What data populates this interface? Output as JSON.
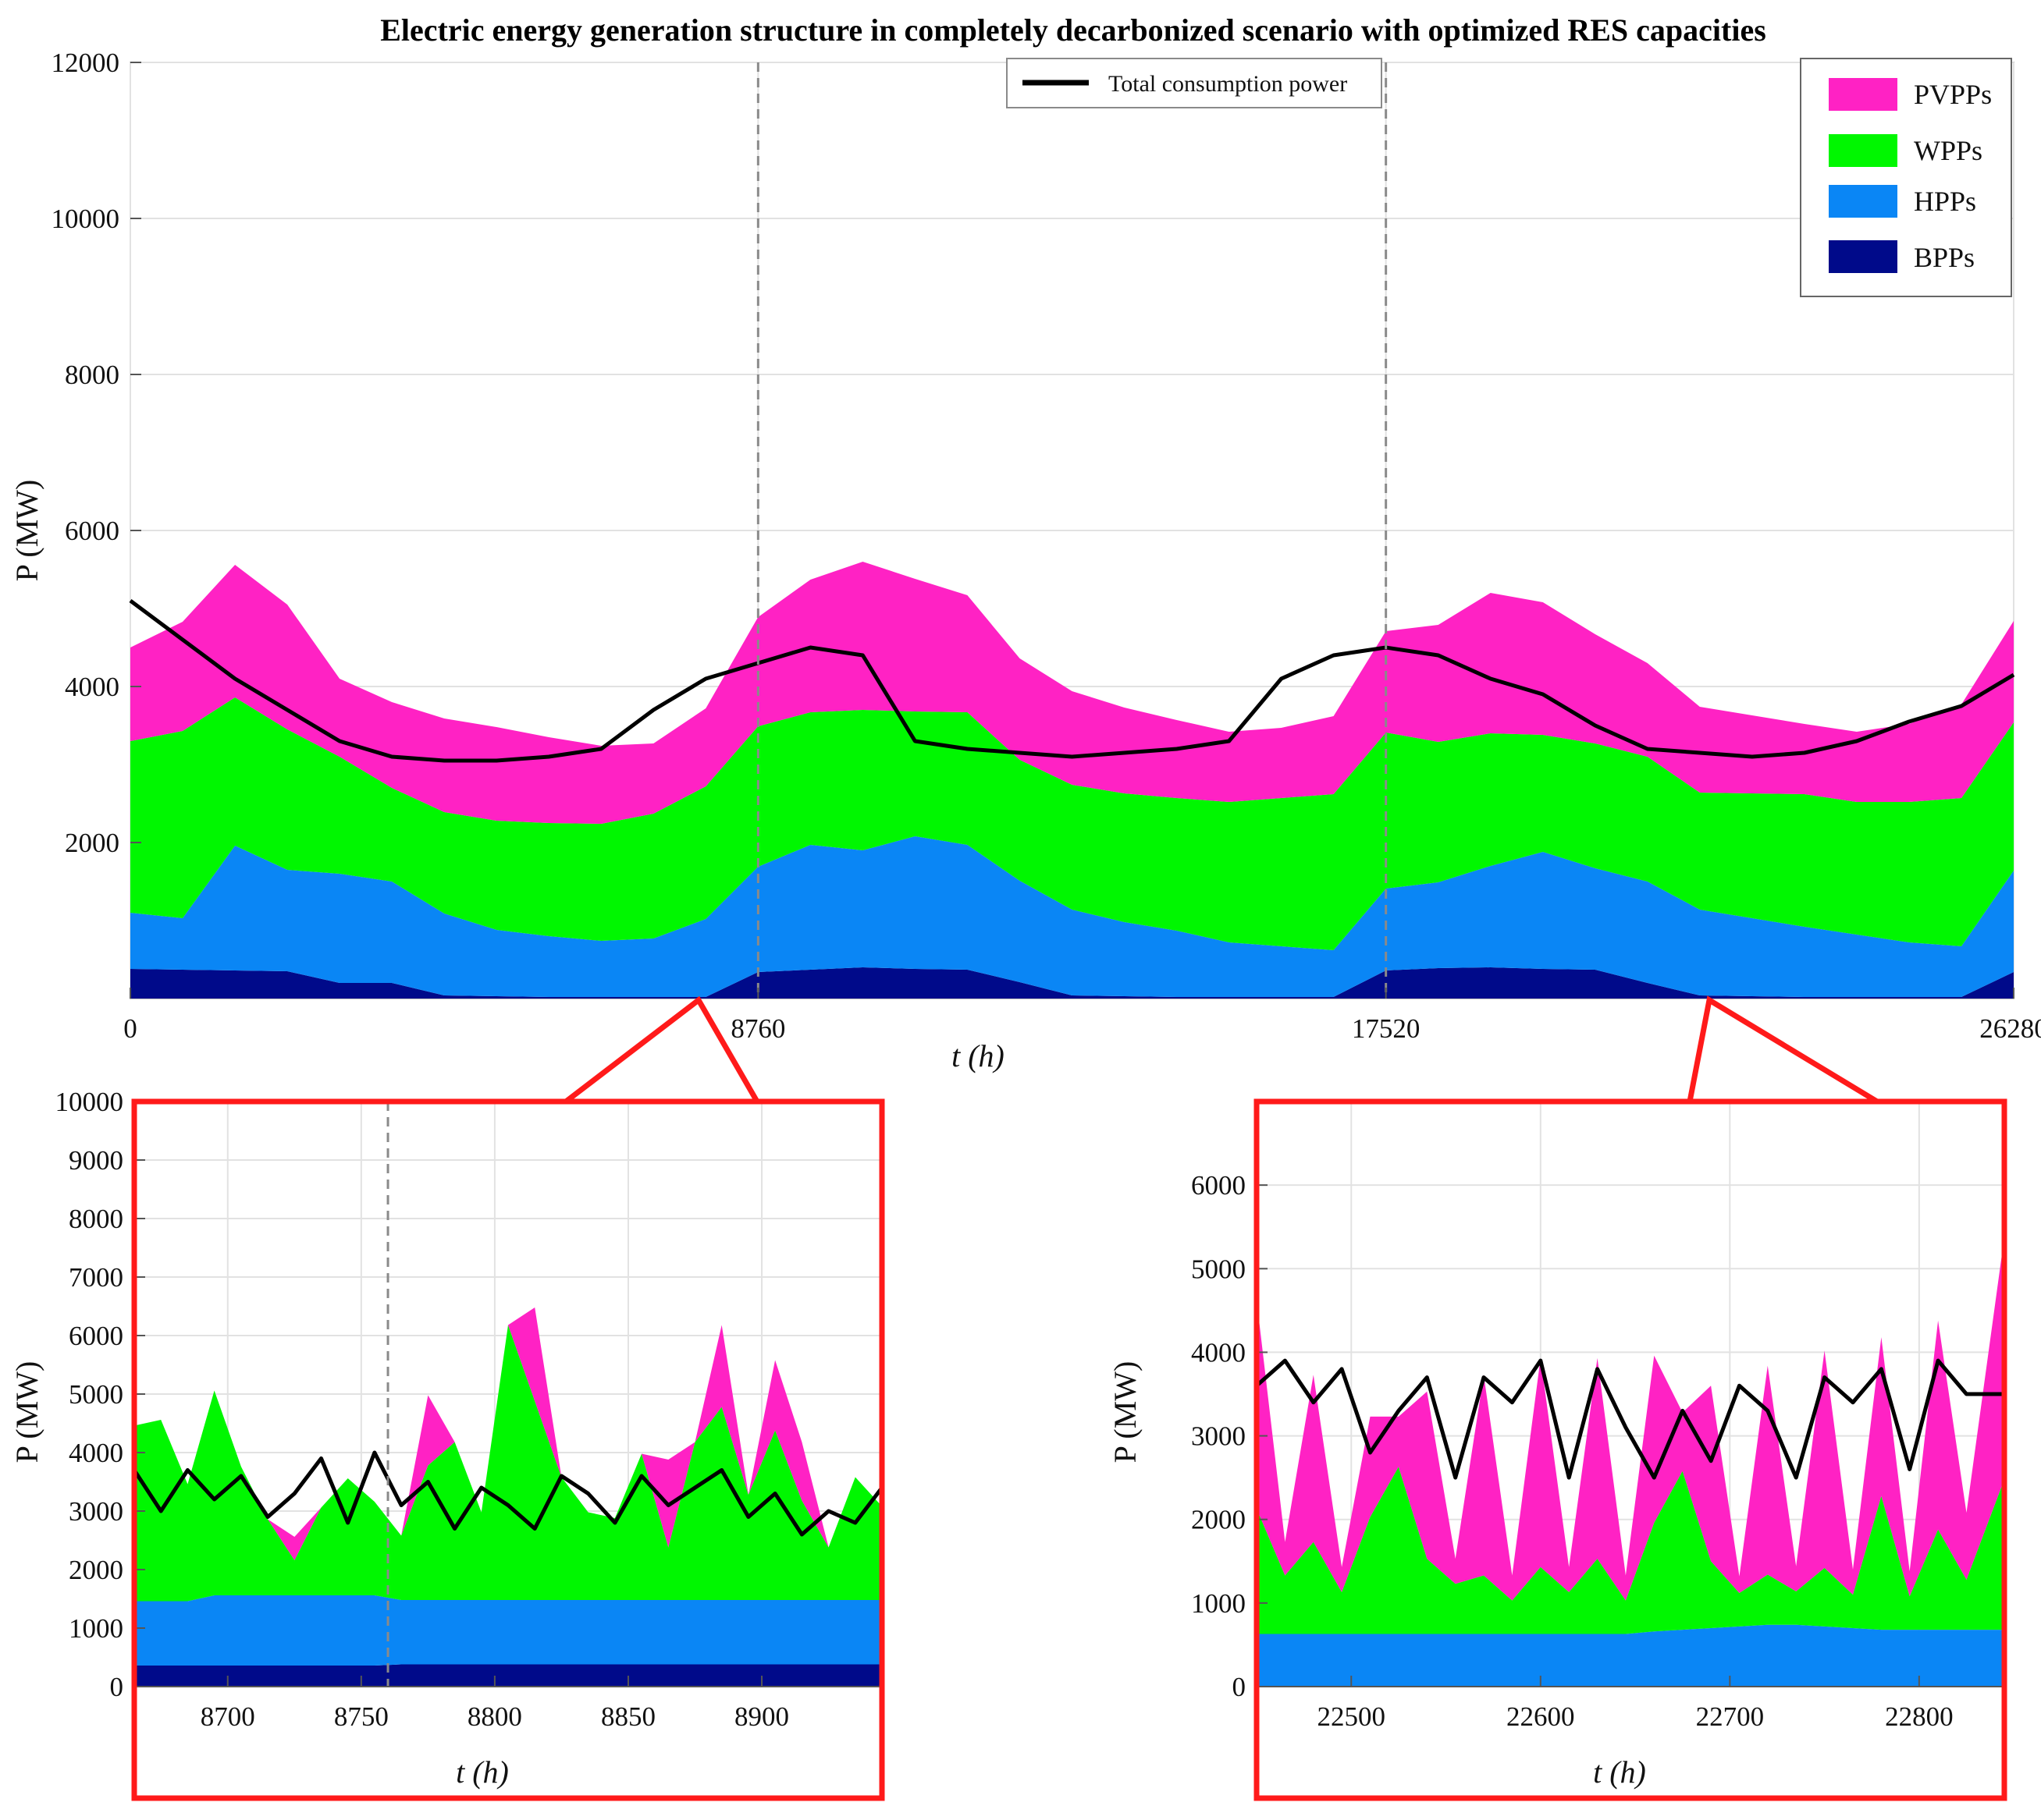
{
  "chart_data": [
    {
      "id": "main",
      "type": "area",
      "stacked": true,
      "title": "Electric energy generation structure in completely decarbonized scenario with optimized RES capacities",
      "xlabel": "t (h)",
      "ylabel": "P (MW)",
      "xlim": [
        0,
        26280
      ],
      "ylim": [
        0,
        12000
      ],
      "xticks": [
        0,
        8760,
        17520,
        26280
      ],
      "yticks": [
        2000,
        4000,
        6000,
        8000,
        10000,
        12000
      ],
      "year_markers": [
        8760,
        17520
      ],
      "legend": {
        "position": "top-right",
        "entries": [
          {
            "label": "PVPPs",
            "color": "#ff22c4"
          },
          {
            "label": "WPPs",
            "color": "#00f700"
          },
          {
            "label": "HPPs",
            "color": "#0a86f5"
          },
          {
            "label": "BPPs",
            "color": "#000a8a"
          }
        ]
      },
      "line_legend": {
        "position": "top-center",
        "label": "Total consumption power",
        "color": "#000000"
      },
      "x": [
        0,
        730,
        1460,
        2190,
        2920,
        3650,
        4380,
        5110,
        5840,
        6570,
        7300,
        8030,
        8760,
        9490,
        10220,
        10950,
        11680,
        12410,
        13140,
        13870,
        14600,
        15330,
        16060,
        16790,
        17520,
        18250,
        18980,
        19710,
        20440,
        21170,
        21900,
        22630,
        23360,
        24090,
        24820,
        25550,
        26280
      ],
      "series": [
        {
          "name": "BPPs",
          "color": "#000a8a",
          "values": [
            380,
            370,
            360,
            350,
            200,
            200,
            40,
            30,
            20,
            20,
            20,
            20,
            340,
            370,
            400,
            380,
            370,
            210,
            40,
            30,
            20,
            20,
            20,
            20,
            360,
            390,
            400,
            380,
            370,
            200,
            40,
            30,
            20,
            20,
            20,
            20,
            340
          ]
        },
        {
          "name": "HPPs",
          "color": "#0a86f5",
          "values": [
            720,
            660,
            1600,
            1300,
            1400,
            1300,
            1050,
            850,
            780,
            720,
            750,
            1000,
            1350,
            1600,
            1500,
            1700,
            1600,
            1300,
            1100,
            950,
            850,
            700,
            650,
            600,
            1050,
            1100,
            1300,
            1500,
            1300,
            1300,
            1100,
            1000,
            900,
            800,
            700,
            650,
            1300
          ]
        },
        {
          "name": "WPPs",
          "color": "#00f700",
          "values": [
            2200,
            2400,
            1900,
            1800,
            1500,
            1200,
            1300,
            1400,
            1450,
            1500,
            1600,
            1700,
            1800,
            1700,
            1800,
            1600,
            1700,
            1550,
            1600,
            1650,
            1700,
            1800,
            1900,
            2000,
            2000,
            1800,
            1700,
            1500,
            1600,
            1600,
            1500,
            1600,
            1700,
            1700,
            1800,
            1900,
            1900
          ]
        },
        {
          "name": "PVPPs",
          "color": "#ff22c4",
          "values": [
            1200,
            1400,
            1700,
            1600,
            1000,
            1100,
            1200,
            1200,
            1100,
            1000,
            900,
            1000,
            1400,
            1700,
            1900,
            1700,
            1500,
            1300,
            1200,
            1100,
            1000,
            900,
            900,
            1000,
            1300,
            1500,
            1800,
            1700,
            1400,
            1200,
            1100,
            1000,
            900,
            900,
            1000,
            1200,
            1300
          ]
        }
      ],
      "line": {
        "name": "Total consumption power",
        "color": "#000000",
        "values": [
          5100,
          4600,
          4100,
          3700,
          3300,
          3100,
          3050,
          3050,
          3100,
          3200,
          3700,
          4100,
          4300,
          4500,
          4400,
          3300,
          3200,
          3150,
          3100,
          3150,
          3200,
          3300,
          4100,
          4400,
          4500,
          4400,
          4100,
          3900,
          3500,
          3200,
          3150,
          3100,
          3150,
          3300,
          3550,
          3750,
          4150
        ]
      }
    },
    {
      "id": "inset1",
      "type": "area",
      "stacked": true,
      "title": "",
      "xlabel": "t (h)",
      "ylabel": "P (MW)",
      "xlim": [
        8665,
        8945
      ],
      "ylim": [
        0,
        10000
      ],
      "xticks": [
        8700,
        8750,
        8800,
        8850,
        8900
      ],
      "yticks": [
        0,
        1000,
        2000,
        3000,
        4000,
        5000,
        6000,
        7000,
        8000,
        9000,
        10000
      ],
      "year_markers": [
        8760
      ],
      "x": [
        8665,
        8675,
        8685,
        8695,
        8705,
        8715,
        8725,
        8735,
        8745,
        8755,
        8765,
        8775,
        8785,
        8795,
        8805,
        8815,
        8825,
        8835,
        8845,
        8855,
        8865,
        8875,
        8885,
        8895,
        8905,
        8915,
        8925,
        8935,
        8945
      ],
      "series": [
        {
          "name": "BPPs",
          "color": "#000a8a",
          "values": [
            360,
            360,
            360,
            360,
            360,
            360,
            360,
            360,
            360,
            360,
            380,
            380,
            380,
            380,
            380,
            380,
            380,
            380,
            380,
            380,
            380,
            380,
            380,
            380,
            380,
            380,
            380,
            380,
            380
          ]
        },
        {
          "name": "HPPs",
          "color": "#0a86f5",
          "values": [
            1100,
            1100,
            1100,
            1200,
            1200,
            1200,
            1200,
            1200,
            1200,
            1200,
            1100,
            1100,
            1100,
            1100,
            1100,
            1100,
            1100,
            1100,
            1100,
            1100,
            1100,
            1100,
            1100,
            1100,
            1100,
            1100,
            1100,
            1100,
            1100
          ]
        },
        {
          "name": "WPPs",
          "color": "#00f700",
          "values": [
            3000,
            3100,
            2000,
            3500,
            2200,
            1300,
            600,
            1500,
            2000,
            1600,
            1100,
            2300,
            2700,
            1500,
            4700,
            3400,
            2100,
            1500,
            1400,
            2500,
            900,
            2700,
            3300,
            1800,
            2900,
            1700,
            900,
            2100,
            1600
          ]
        },
        {
          "name": "PVPPs",
          "color": "#ff22c4",
          "values": [
            0,
            0,
            0,
            0,
            0,
            0,
            400,
            0,
            0,
            0,
            0,
            1200,
            0,
            0,
            0,
            1600,
            0,
            0,
            0,
            0,
            1500,
            0,
            1400,
            0,
            1200,
            1000,
            0,
            0,
            0
          ]
        }
      ],
      "line": {
        "name": "Total consumption power",
        "color": "#000000",
        "values": [
          3700,
          3000,
          3700,
          3200,
          3600,
          2900,
          3300,
          3900,
          2800,
          4000,
          3100,
          3500,
          2700,
          3400,
          3100,
          2700,
          3600,
          3300,
          2800,
          3600,
          3100,
          3400,
          3700,
          2900,
          3300,
          2600,
          3000,
          2800,
          3400
        ]
      }
    },
    {
      "id": "inset2",
      "type": "area",
      "stacked": true,
      "title": "",
      "xlabel": "t (h)",
      "ylabel": "P (MW)",
      "xlim": [
        22450,
        22845
      ],
      "ylim": [
        0,
        7000
      ],
      "xticks": [
        22500,
        22600,
        22700,
        22800
      ],
      "yticks": [
        0,
        1000,
        2000,
        3000,
        4000,
        5000,
        6000
      ],
      "x": [
        22450,
        22465,
        22480,
        22495,
        22510,
        22525,
        22540,
        22555,
        22570,
        22585,
        22600,
        22615,
        22630,
        22645,
        22660,
        22675,
        22690,
        22705,
        22720,
        22735,
        22750,
        22765,
        22780,
        22795,
        22810,
        22825,
        22845
      ],
      "series": [
        {
          "name": "BPPs",
          "color": "#000a8a",
          "values": [
            0,
            0,
            0,
            0,
            0,
            0,
            0,
            0,
            0,
            0,
            0,
            0,
            0,
            0,
            0,
            0,
            0,
            0,
            0,
            0,
            0,
            0,
            0,
            0,
            0,
            0,
            0
          ]
        },
        {
          "name": "HPPs",
          "color": "#0a86f5",
          "values": [
            630,
            630,
            630,
            630,
            630,
            630,
            630,
            630,
            630,
            630,
            630,
            630,
            630,
            630,
            660,
            680,
            700,
            720,
            740,
            740,
            720,
            700,
            680,
            680,
            680,
            680,
            680
          ]
        },
        {
          "name": "WPPs",
          "color": "#00f700",
          "values": [
            1500,
            700,
            1100,
            500,
            1400,
            2000,
            900,
            600,
            700,
            400,
            800,
            500,
            900,
            400,
            1300,
            1900,
            800,
            400,
            600,
            400,
            700,
            400,
            1600,
            400,
            1200,
            600,
            1800
          ]
        },
        {
          "name": "PVPPs",
          "color": "#ff22c4",
          "values": [
            2500,
            400,
            2000,
            300,
            1200,
            600,
            2000,
            300,
            2400,
            300,
            2500,
            300,
            2400,
            300,
            2000,
            700,
            2100,
            200,
            2500,
            300,
            2600,
            300,
            1900,
            300,
            2500,
            800,
            2900
          ]
        }
      ],
      "line": {
        "name": "Total consumption power",
        "color": "#000000",
        "values": [
          3600,
          3900,
          3400,
          3800,
          2800,
          3300,
          3700,
          2500,
          3700,
          3400,
          3900,
          2500,
          3800,
          3100,
          2500,
          3300,
          2700,
          3600,
          3300,
          2500,
          3700,
          3400,
          3800,
          2600,
          3900,
          3500,
          3500
        ]
      }
    }
  ]
}
